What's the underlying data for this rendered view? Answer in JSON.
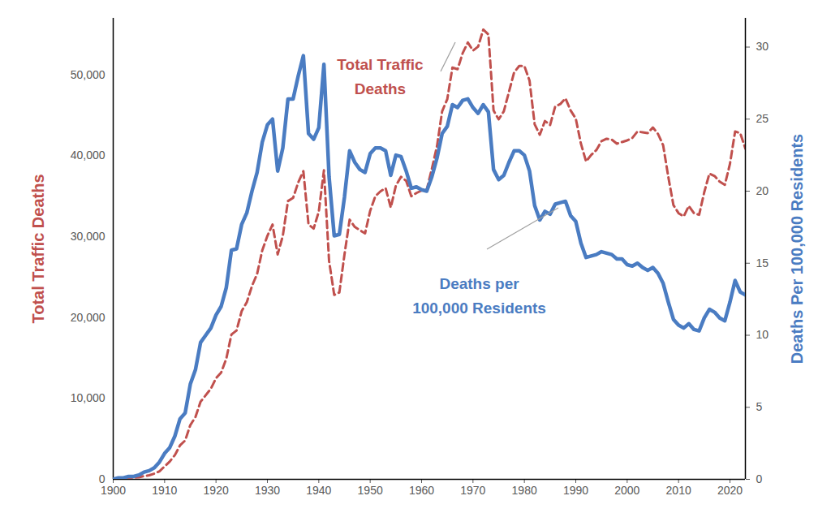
{
  "chart_data": {
    "type": "line",
    "ylabel": "Total Traffic Deaths",
    "y2label": "Deaths Per 100,000 Residents",
    "x": [
      1900,
      1901,
      1902,
      1903,
      1904,
      1905,
      1906,
      1907,
      1908,
      1909,
      1910,
      1911,
      1912,
      1913,
      1914,
      1915,
      1916,
      1917,
      1918,
      1919,
      1920,
      1921,
      1922,
      1923,
      1924,
      1925,
      1926,
      1927,
      1928,
      1929,
      1930,
      1931,
      1932,
      1933,
      1934,
      1935,
      1936,
      1937,
      1938,
      1939,
      1940,
      1941,
      1942,
      1943,
      1944,
      1945,
      1946,
      1947,
      1948,
      1949,
      1950,
      1951,
      1952,
      1953,
      1954,
      1955,
      1956,
      1957,
      1958,
      1959,
      1960,
      1961,
      1962,
      1963,
      1964,
      1965,
      1966,
      1967,
      1968,
      1969,
      1970,
      1971,
      1972,
      1973,
      1974,
      1975,
      1976,
      1977,
      1978,
      1979,
      1980,
      1981,
      1982,
      1983,
      1984,
      1985,
      1986,
      1987,
      1988,
      1989,
      1990,
      1991,
      1992,
      1993,
      1994,
      1995,
      1996,
      1997,
      1998,
      1999,
      2000,
      2001,
      2002,
      2003,
      2004,
      2005,
      2006,
      2007,
      2008,
      2009,
      2010,
      2011,
      2012,
      2013,
      2014,
      2015,
      2016,
      2017,
      2018,
      2019,
      2020,
      2021,
      2022,
      2023
    ],
    "xlim": [
      1900,
      2023
    ],
    "xticks": [
      1900,
      1910,
      1920,
      1930,
      1940,
      1950,
      1960,
      1970,
      1980,
      1990,
      2000,
      2010,
      2020
    ],
    "ylim": [
      0,
      57000
    ],
    "yticks": [
      0,
      {
        "value": 10000,
        "label": "10,000"
      },
      {
        "value": 20000,
        "label": "20,000"
      },
      {
        "value": 30000,
        "label": "30,000"
      },
      {
        "value": 40000,
        "label": "40,000"
      },
      {
        "value": 50000,
        "label": "50,000"
      }
    ],
    "y2lim": [
      0,
      32
    ],
    "y2ticks": [
      0,
      5,
      10,
      15,
      20,
      25,
      30
    ],
    "series": [
      {
        "name": "Total Traffic Deaths",
        "color": "#c0504d",
        "line_style": "dashed",
        "values": [
          0,
          0,
          0,
          100,
          200,
          250,
          400,
          500,
          700,
          1000,
          1600,
          2200,
          3000,
          4200,
          4800,
          6700,
          7700,
          9600,
          10400,
          11200,
          12500,
          13200,
          14900,
          17900,
          18400,
          20800,
          21900,
          23900,
          25400,
          28300,
          30100,
          31500,
          27800,
          30100,
          34400,
          34800,
          36700,
          38100,
          31500,
          31000,
          33100,
          38200,
          27000,
          22800,
          23100,
          27800,
          32100,
          31200,
          30800,
          30400,
          33200,
          35000,
          35600,
          36000,
          33600,
          36300,
          37400,
          36900,
          35000,
          35400,
          35700,
          35800,
          38400,
          41200,
          45500,
          47000,
          50900,
          50700,
          52700,
          54000,
          53000,
          53500,
          55600,
          55000,
          45600,
          44500,
          45500,
          47900,
          50300,
          51100,
          51100,
          49300,
          43900,
          42600,
          44300,
          43800,
          46100,
          46400,
          47100,
          45600,
          44600,
          41500,
          39300,
          40100,
          40700,
          41800,
          42100,
          42000,
          41500,
          41700,
          41900,
          42200,
          43000,
          42900,
          42800,
          43500,
          42700,
          41300,
          37400,
          33900,
          32900,
          32500,
          33800,
          32900,
          32700,
          35500,
          37800,
          37500,
          36800,
          36400,
          39000,
          43000,
          42800,
          40900
        ]
      },
      {
        "name": "Deaths per 100,000 Residents",
        "color": "#4a7cc2",
        "line_style": "solid",
        "axis": "y2",
        "values": [
          0,
          0.1,
          0.1,
          0.2,
          0.2,
          0.3,
          0.5,
          0.6,
          0.8,
          1.2,
          1.8,
          2.2,
          3.0,
          4.2,
          4.6,
          6.6,
          7.6,
          9.5,
          10.0,
          10.5,
          11.4,
          12.0,
          13.3,
          15.9,
          16.0,
          17.7,
          18.5,
          20.0,
          21.3,
          23.4,
          24.6,
          25.0,
          21.4,
          23.0,
          26.4,
          26.4,
          28.0,
          29.4,
          24.0,
          23.6,
          24.4,
          28.8,
          21.0,
          16.9,
          17.0,
          19.6,
          22.8,
          22.0,
          21.5,
          21.3,
          22.6,
          23.0,
          23.0,
          22.8,
          21.1,
          22.5,
          22.4,
          21.4,
          20.2,
          20.3,
          20.1,
          20.0,
          21.0,
          22.3,
          24.0,
          24.5,
          26.0,
          25.8,
          26.3,
          26.4,
          25.8,
          25.4,
          26.0,
          25.5,
          21.5,
          20.8,
          21.1,
          22.0,
          22.8,
          22.8,
          22.5,
          21.4,
          19.0,
          18.0,
          18.6,
          18.4,
          19.1,
          19.2,
          19.3,
          18.3,
          17.9,
          16.4,
          15.4,
          15.5,
          15.6,
          15.8,
          15.7,
          15.6,
          15.3,
          15.3,
          14.9,
          14.8,
          15.0,
          14.7,
          14.5,
          14.7,
          14.3,
          13.6,
          12.3,
          11.1,
          10.7,
          10.5,
          10.8,
          10.4,
          10.3,
          11.2,
          11.8,
          11.6,
          11.2,
          11.0,
          12.3,
          13.8,
          13.0,
          12.8
        ]
      }
    ]
  }
}
